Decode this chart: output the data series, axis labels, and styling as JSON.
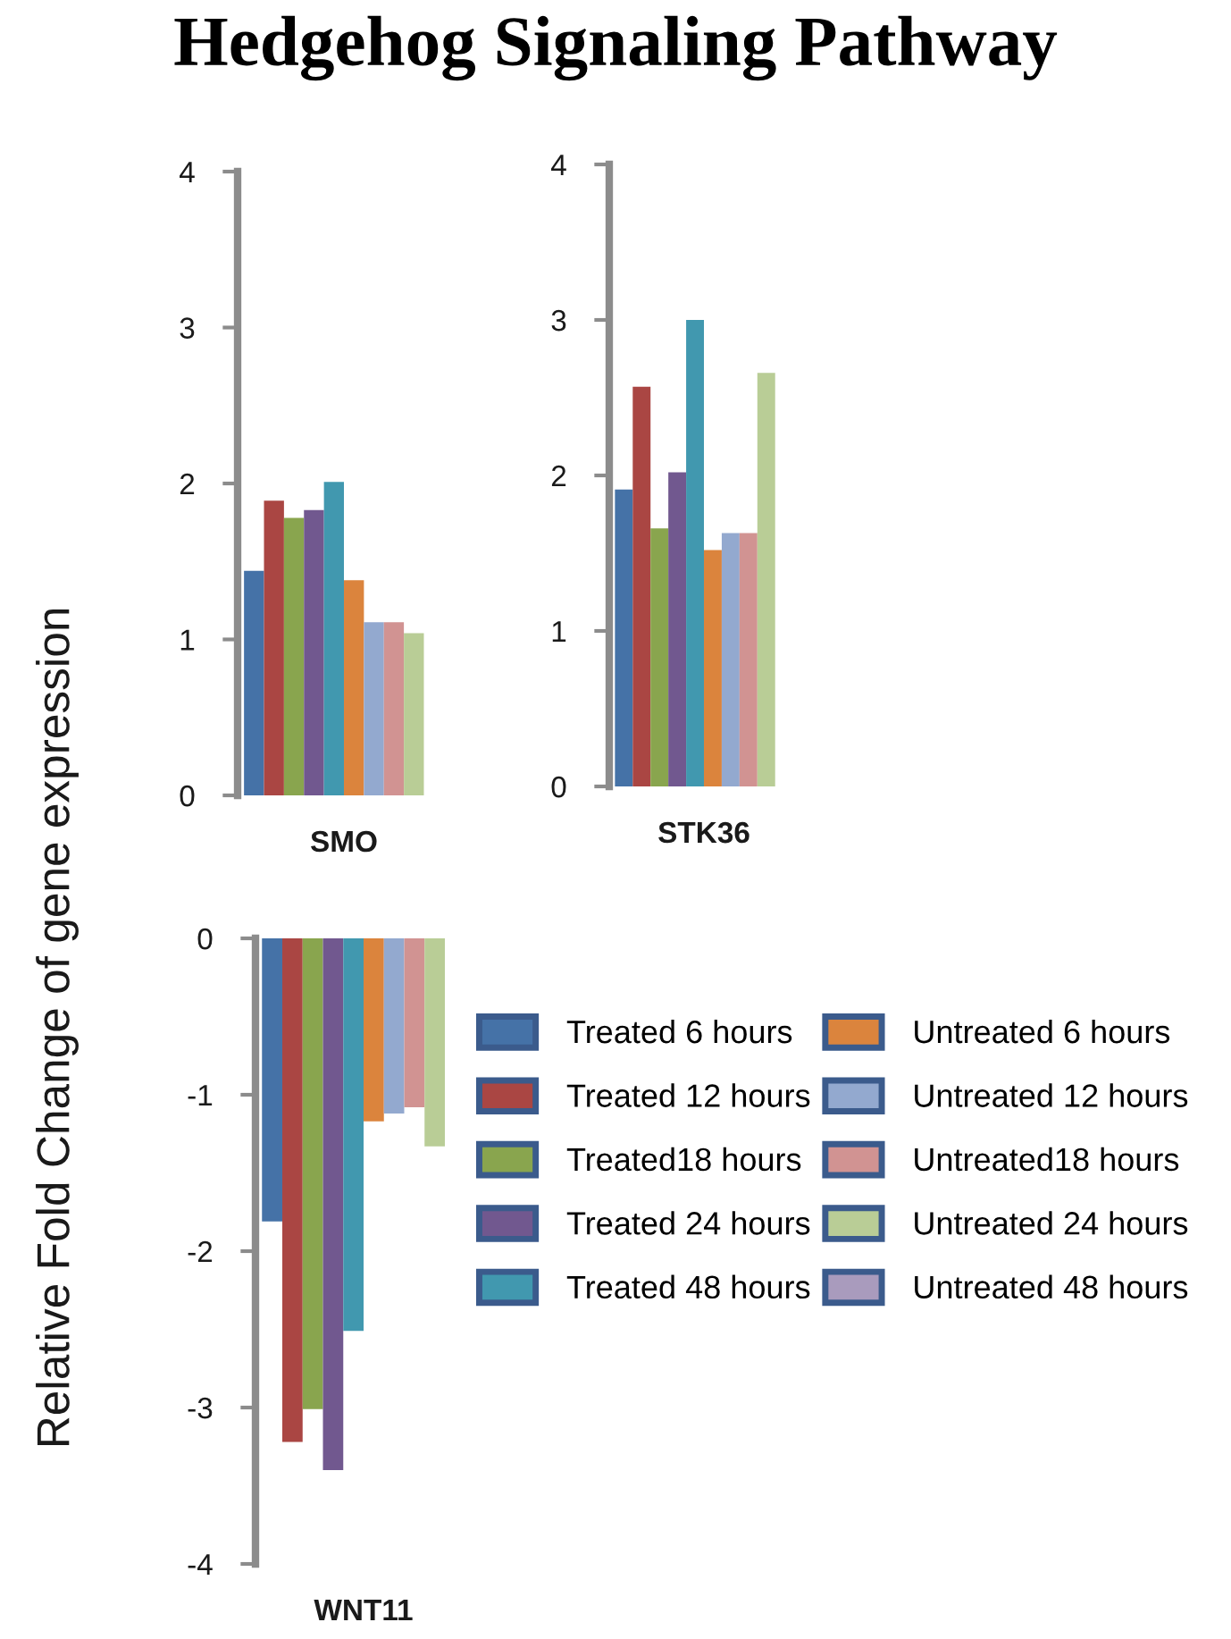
{
  "chart_data": [
    {
      "type": "bar",
      "title": "Hedgehog Signaling Pathway",
      "ylabel": "Relative Fold Change of gene expression",
      "categories": [
        "SMO"
      ],
      "ylim": [
        0,
        4
      ],
      "yticks": [
        0,
        1,
        2,
        3,
        4
      ],
      "series": [
        {
          "color": "#4572a7",
          "values": [
            1.44
          ]
        },
        {
          "color": "#aa4643",
          "values": [
            1.89
          ]
        },
        {
          "color": "#89a54e",
          "values": [
            1.78
          ]
        },
        {
          "color": "#71588f",
          "values": [
            1.83
          ]
        },
        {
          "color": "#4198af",
          "values": [
            2.01
          ]
        },
        {
          "color": "#db843d",
          "values": [
            1.38
          ]
        },
        {
          "color": "#93a9cf",
          "values": [
            1.11
          ]
        },
        {
          "color": "#d19392",
          "values": [
            1.11
          ]
        },
        {
          "color": "#b9cd96",
          "values": [
            1.04
          ]
        },
        {
          "values": [
            null
          ]
        }
      ]
    },
    {
      "type": "bar",
      "categories": [
        "STK36"
      ],
      "ylim": [
        0,
        4
      ],
      "yticks": [
        0,
        1,
        2,
        3,
        4
      ],
      "series": [
        {
          "color": "#4572a7",
          "values": [
            1.91
          ]
        },
        {
          "color": "#aa4643",
          "values": [
            2.57
          ]
        },
        {
          "color": "#89a54e",
          "values": [
            1.66
          ]
        },
        {
          "color": "#71588f",
          "values": [
            2.02
          ]
        },
        {
          "color": "#4198af",
          "values": [
            3.0
          ]
        },
        {
          "color": "#db843d",
          "values": [
            1.52
          ]
        },
        {
          "color": "#93a9cf",
          "values": [
            1.63
          ]
        },
        {
          "color": "#d19392",
          "values": [
            1.63
          ]
        },
        {
          "color": "#b9cd96",
          "values": [
            2.66
          ]
        },
        {
          "values": [
            null
          ]
        }
      ]
    },
    {
      "type": "bar",
      "categories": [
        "WNT11"
      ],
      "ylim": [
        -4,
        0
      ],
      "yticks": [
        -4,
        -3,
        -2,
        -1,
        0
      ],
      "legend": "right",
      "series": [
        {
          "name": "Treated 6 hours",
          "color": "#4572a7",
          "values": [
            -1.81
          ]
        },
        {
          "name": "Treated 12 hours",
          "color": "#aa4643",
          "values": [
            -3.22
          ]
        },
        {
          "name": "Treated18 hours",
          "color": "#89a54e",
          "values": [
            -3.01
          ]
        },
        {
          "name": "Treated 24 hours",
          "color": "#71588f",
          "values": [
            -3.4
          ]
        },
        {
          "name": "Treated 48 hours",
          "color": "#4198af",
          "values": [
            -2.51
          ]
        },
        {
          "name": "Untreated 6 hours",
          "color": "#db843d",
          "values": [
            -1.17
          ]
        },
        {
          "name": "Untreated 12 hours",
          "color": "#93a9cf",
          "values": [
            -1.12
          ]
        },
        {
          "name": "Untreated18 hours",
          "color": "#d19392",
          "values": [
            -1.08
          ]
        },
        {
          "name": "Untreated 24 hours",
          "color": "#b9cd96",
          "values": [
            -1.33
          ]
        },
        {
          "name": "Untreated 48 hours",
          "color": "#a99bbd",
          "values": [
            null
          ]
        }
      ]
    }
  ]
}
